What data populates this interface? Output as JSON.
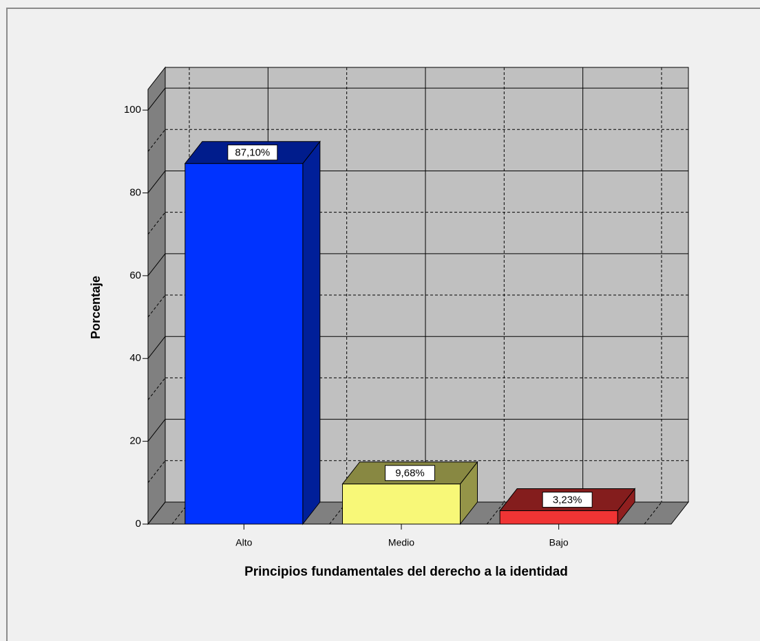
{
  "chart_data": {
    "type": "bar3d",
    "x_label": "Principios fundamentales del derecho a la identidad",
    "y_label": "Porcentaje",
    "categories": [
      "Alto",
      "Medio",
      "Bajo"
    ],
    "values": [
      87.1,
      9.68,
      3.23
    ],
    "value_labels": [
      "87,10%",
      "9,68%",
      "3,23%"
    ],
    "colors": [
      "#0033ff",
      "#f8f878",
      "#f03434"
    ],
    "ylim": [
      0,
      105
    ],
    "yticks": [
      0,
      20,
      40,
      60,
      80,
      100
    ],
    "grid": true
  }
}
